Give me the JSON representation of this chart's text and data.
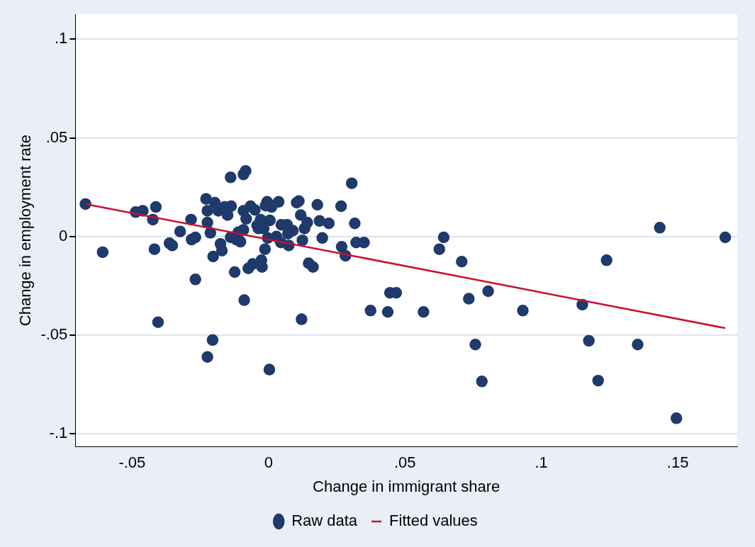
{
  "chart_data": {
    "type": "scatter",
    "xlabel": "Change in immigrant share",
    "ylabel": "Change in employment rate",
    "xlim": [
      -0.0708,
      0.1718
    ],
    "ylim": [
      -0.1064,
      0.1127
    ],
    "xticks": [
      {
        "value": -0.05,
        "label": "-.05"
      },
      {
        "value": 0,
        "label": "0"
      },
      {
        "value": 0.05,
        "label": ".05"
      },
      {
        "value": 0.1,
        "label": ".1"
      },
      {
        "value": 0.15,
        "label": ".15"
      }
    ],
    "yticks": [
      {
        "value": -0.1,
        "label": "-.1"
      },
      {
        "value": -0.05,
        "label": "-.05"
      },
      {
        "value": 0,
        "label": "0"
      },
      {
        "value": 0.05,
        "label": ".05"
      },
      {
        "value": 0.1,
        "label": ".1"
      }
    ],
    "grid": "y",
    "legend": "bottom",
    "series": [
      {
        "name": "Raw data",
        "marker": "circle",
        "color": "#1f3a6b",
        "x": [
          -0.0671,
          -0.0608,
          -0.0487,
          -0.0461,
          -0.0424,
          -0.0418,
          -0.0413,
          -0.0405,
          -0.0363,
          -0.0353,
          -0.0324,
          -0.0284,
          -0.0282,
          -0.0268,
          -0.0268,
          -0.0229,
          -0.0224,
          -0.0224,
          -0.0224,
          -0.0213,
          -0.0205,
          -0.0203,
          -0.0197,
          -0.0184,
          -0.0176,
          -0.0171,
          -0.0161,
          -0.015,
          -0.0139,
          -0.0137,
          -0.0139,
          -0.0124,
          -0.0118,
          -0.0111,
          -0.0103,
          -0.0092,
          -0.0089,
          -0.0084,
          -0.0092,
          -0.0092,
          -0.0082,
          -0.0074,
          -0.0066,
          -0.0058,
          -0.005,
          -0.0042,
          -0.0037,
          -0.0029,
          -0.0026,
          -0.0024,
          -0.0018,
          -0.0013,
          -0.0011,
          -0.0005,
          -0.0003,
          0.0003,
          0.0005,
          0.0011,
          0.0029,
          0.0037,
          0.0045,
          0.0047,
          0.0068,
          0.0071,
          0.0074,
          0.0089,
          0.0103,
          0.0111,
          0.0118,
          0.0121,
          0.0124,
          0.0132,
          0.0142,
          0.0147,
          0.0163,
          0.0179,
          0.0187,
          0.0197,
          0.0221,
          0.0266,
          0.0268,
          0.0282,
          0.0305,
          0.0316,
          0.0321,
          0.035,
          0.0374,
          0.0437,
          0.0445,
          0.0468,
          0.0568,
          0.0626,
          0.0642,
          0.0708,
          0.0734,
          0.0758,
          0.0782,
          0.0805,
          0.0932,
          0.115,
          0.1174,
          0.1208,
          0.1239,
          0.1353,
          0.1434,
          0.1495,
          0.1674
        ],
        "values": [
          0.0165,
          -0.0079,
          0.0124,
          0.0131,
          0.0086,
          -0.0064,
          0.015,
          -0.0434,
          -0.0034,
          -0.0045,
          0.0026,
          0.0086,
          -0.0015,
          -0.0004,
          -0.0217,
          0.0191,
          0.0131,
          0.0071,
          -0.061,
          0.0019,
          -0.0524,
          -0.0101,
          0.0172,
          0.0131,
          -0.0037,
          -0.0071,
          0.015,
          0.0109,
          0.03,
          0.0154,
          -0.0004,
          -0.018,
          -0.0015,
          0.0022,
          -0.0026,
          0.0315,
          -0.0322,
          0.0333,
          0.0131,
          0.0034,
          0.009,
          -0.0161,
          0.0154,
          -0.0139,
          0.0135,
          0.0056,
          0.0041,
          0.0086,
          -0.012,
          -0.0154,
          0.0041,
          -0.0064,
          0.0157,
          0.0176,
          -0.0007,
          -0.0674,
          0.0082,
          0.015,
          0,
          0.0176,
          -0.003,
          0.006,
          0.006,
          0.0015,
          -0.0045,
          0.003,
          0.0172,
          0.018,
          0.0109,
          -0.0419,
          -0.0019,
          0.0041,
          0.0071,
          -0.0135,
          -0.0154,
          0.0161,
          0.0079,
          -0.0007,
          0.0067,
          0.0154,
          -0.0052,
          -0.0097,
          0.027,
          0.0067,
          -0.003,
          -0.003,
          -0.0375,
          -0.0382,
          -0.0285,
          -0.0285,
          -0.0382,
          -0.0064,
          -0.0004,
          -0.0127,
          -0.0315,
          -0.0547,
          -0.0734,
          -0.0277,
          -0.0375,
          -0.0345,
          -0.0528,
          -0.073,
          -0.012,
          -0.0547,
          0.0045,
          -0.0921,
          -0.0004
        ]
      },
      {
        "name": "Fitted values",
        "type": "line",
        "marker": "none",
        "line_style": "solid",
        "color": "#c8102e",
        "x": [
          -0.0671,
          0.1674
        ],
        "values": [
          0.0165,
          -0.0464
        ]
      }
    ]
  }
}
